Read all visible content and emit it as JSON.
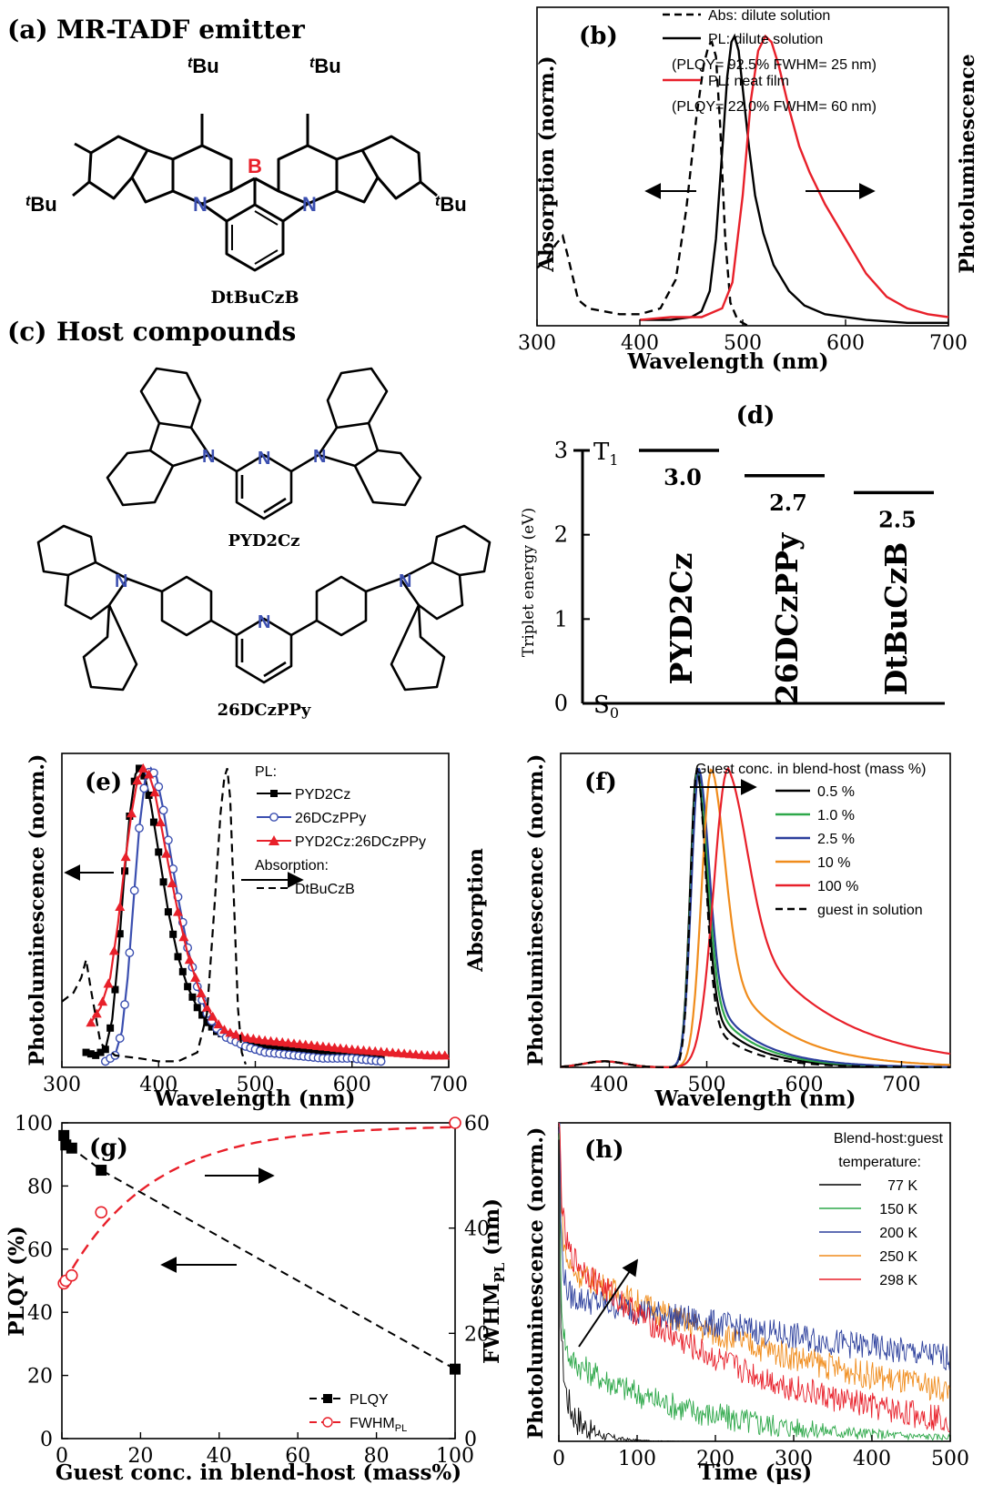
{
  "panel_a": {
    "label": "(a)",
    "title": "MR-TADF emitter",
    "substituents": {
      "tbu_prefix": "t",
      "tbu_suffix": "Bu"
    },
    "atoms": {
      "boron": "B",
      "nitrogen": "N"
    },
    "compound_name": "DtBuCzB"
  },
  "panel_c": {
    "label": "(c)",
    "title": "Host compounds",
    "atoms": {
      "nitrogen": "N"
    },
    "compound_1": "PYD2Cz",
    "compound_2": "26DCzPPy"
  },
  "colors": {
    "black": "#000000",
    "red": "#e8202a",
    "blue": "#3b4fb0",
    "green": "#2ea84a",
    "darkblue": "#2c3f9c",
    "orange": "#f08c1c"
  },
  "chart_data": [
    {
      "id": "b",
      "label": "(b)",
      "type": "line",
      "xlabel": "Wavelength (nm)",
      "ylabel": "Absorption (norm.)",
      "ylabel_right": "Photoluminescence",
      "xlim": [
        300,
        700
      ],
      "ylim": [
        0,
        1.1
      ],
      "xticks": [
        "300",
        "400",
        "500",
        "600",
        "700"
      ],
      "legend": [
        {
          "text": "Abs: dilute solution",
          "style": "dashed",
          "color": "#000000"
        },
        {
          "text": "PL: dilute solution",
          "style": "solid",
          "color": "#000000"
        },
        {
          "text": "(PLQY= 92.5% FWHM= 25 nm)",
          "style": "none"
        },
        {
          "text": "PL: neat film",
          "style": "solid",
          "color": "#e8202a"
        },
        {
          "text": "(PLQY= 22.0% FWHM= 60 nm)",
          "style": "none"
        }
      ],
      "series": [
        {
          "name": "Abs: dilute solution",
          "style": "dashed",
          "color": "#000000",
          "x": [
            300,
            310,
            318,
            325,
            330,
            340,
            350,
            380,
            400,
            420,
            435,
            445,
            455,
            462,
            467,
            470,
            474,
            478,
            483,
            488,
            495,
            505
          ],
          "y": [
            0.2,
            0.23,
            0.28,
            0.31,
            0.24,
            0.09,
            0.06,
            0.04,
            0.04,
            0.06,
            0.16,
            0.4,
            0.72,
            0.9,
            0.97,
            0.98,
            0.93,
            0.7,
            0.3,
            0.08,
            0.02,
            0.0
          ]
        },
        {
          "name": "PL: dilute solution",
          "style": "solid",
          "color": "#000000",
          "x": [
            400,
            430,
            450,
            460,
            468,
            474,
            480,
            485,
            489,
            492,
            496,
            500,
            506,
            512,
            520,
            530,
            545,
            560,
            580,
            620,
            660,
            700
          ],
          "y": [
            0.02,
            0.02,
            0.03,
            0.05,
            0.12,
            0.3,
            0.6,
            0.86,
            0.98,
            1.0,
            0.95,
            0.82,
            0.62,
            0.45,
            0.32,
            0.21,
            0.12,
            0.07,
            0.04,
            0.02,
            0.01,
            0.01
          ]
        },
        {
          "name": "PL: neat film",
          "style": "solid",
          "color": "#e8202a",
          "x": [
            400,
            430,
            460,
            480,
            490,
            500,
            508,
            515,
            522,
            528,
            535,
            545,
            555,
            565,
            580,
            600,
            620,
            640,
            660,
            680,
            700
          ],
          "y": [
            0.02,
            0.03,
            0.03,
            0.06,
            0.15,
            0.45,
            0.78,
            0.95,
            1.0,
            0.98,
            0.9,
            0.75,
            0.62,
            0.53,
            0.42,
            0.3,
            0.18,
            0.1,
            0.06,
            0.04,
            0.03
          ]
        }
      ],
      "annotations": [
        {
          "text": "←",
          "meaning": "absorption axis"
        },
        {
          "text": "→",
          "meaning": "PL axis"
        }
      ]
    },
    {
      "id": "d",
      "label": "(d)",
      "type": "bar",
      "ylabel": "Triplet energy (eV)",
      "ylim": [
        0,
        3
      ],
      "yticks": [
        "0",
        "1",
        "2",
        "3"
      ],
      "level_top": "T",
      "level_top_sub": "1",
      "level_bottom": "S",
      "level_bottom_sub": "0",
      "categories": [
        "PYD2Cz",
        "26DCzPPy",
        "DtBuCzB"
      ],
      "values": [
        3.0,
        2.7,
        2.5
      ],
      "value_labels": [
        "3.0",
        "2.7",
        "2.5"
      ]
    },
    {
      "id": "e",
      "label": "(e)",
      "type": "line",
      "xlabel": "Wavelength (nm)",
      "ylabel": "Photoluminescence (norm.)",
      "ylabel_right": "Absorption",
      "xlim": [
        300,
        700
      ],
      "ylim": [
        0,
        1.05
      ],
      "xticks": [
        "300",
        "400",
        "500",
        "600",
        "700"
      ],
      "legend_title_pl": "PL:",
      "legend_title_abs": "Absorption:",
      "series": [
        {
          "name": "PYD2Cz",
          "color": "#000000",
          "marker": "square",
          "x": [
            325,
            335,
            345,
            352,
            358,
            364,
            370,
            376,
            380,
            386,
            392,
            400,
            410,
            420,
            430,
            440,
            450,
            460,
            480,
            500,
            530,
            560,
            600,
            630
          ],
          "y": [
            0.05,
            0.04,
            0.06,
            0.16,
            0.36,
            0.62,
            0.84,
            0.98,
            1.0,
            0.97,
            0.88,
            0.72,
            0.52,
            0.37,
            0.27,
            0.2,
            0.15,
            0.12,
            0.09,
            0.07,
            0.06,
            0.05,
            0.04,
            0.03
          ]
        },
        {
          "name": "26DCzPPy",
          "color": "#3b4fb0",
          "marker": "circle",
          "x": [
            345,
            355,
            362,
            368,
            374,
            380,
            386,
            392,
            398,
            405,
            412,
            420,
            430,
            440,
            450,
            460,
            470,
            490,
            510,
            540,
            570,
            600,
            630
          ],
          "y": [
            0.02,
            0.04,
            0.12,
            0.3,
            0.55,
            0.8,
            0.96,
            1.0,
            0.97,
            0.86,
            0.72,
            0.57,
            0.4,
            0.27,
            0.18,
            0.13,
            0.1,
            0.07,
            0.05,
            0.04,
            0.03,
            0.03,
            0.02
          ]
        },
        {
          "name": "PYD2Cz:26DCzPPy",
          "color": "#e8202a",
          "marker": "triangle",
          "x": [
            330,
            340,
            350,
            358,
            365,
            372,
            378,
            384,
            390,
            396,
            402,
            410,
            420,
            430,
            440,
            450,
            460,
            470,
            490,
            510,
            540,
            570,
            600,
            640,
            680,
            700
          ],
          "y": [
            0.15,
            0.2,
            0.3,
            0.48,
            0.68,
            0.85,
            0.96,
            1.0,
            0.98,
            0.92,
            0.82,
            0.68,
            0.52,
            0.38,
            0.28,
            0.2,
            0.15,
            0.12,
            0.1,
            0.09,
            0.08,
            0.07,
            0.06,
            0.05,
            0.04,
            0.04
          ]
        },
        {
          "name": "DtBuCzB",
          "color": "#000000",
          "style": "dashed",
          "x": [
            300,
            312,
            320,
            325,
            330,
            340,
            355,
            380,
            400,
            420,
            440,
            450,
            458,
            464,
            468,
            471,
            474,
            478,
            482,
            486,
            490
          ],
          "y": [
            0.22,
            0.25,
            0.3,
            0.36,
            0.26,
            0.08,
            0.04,
            0.03,
            0.02,
            0.02,
            0.05,
            0.18,
            0.55,
            0.85,
            0.97,
            1.0,
            0.9,
            0.55,
            0.2,
            0.05,
            0.01
          ]
        }
      ]
    },
    {
      "id": "f",
      "label": "(f)",
      "type": "line",
      "xlabel": "Wavelength (nm)",
      "ylabel": "Photoluminescence (norm.)",
      "xlim": [
        350,
        750
      ],
      "ylim": [
        0,
        1.05
      ],
      "xticks": [
        "400",
        "500",
        "600",
        "700"
      ],
      "legend_title": "Guest conc. in blend-host (mass %)",
      "series": [
        {
          "name": "0.5 %",
          "color": "#000000",
          "peak": 490,
          "width": 18,
          "tail": 0.25
        },
        {
          "name": "1.0 %",
          "color": "#2ea84a",
          "peak": 491,
          "width": 19,
          "tail": 0.28
        },
        {
          "name": "2.5 %",
          "color": "#2c3f9c",
          "peak": 492,
          "width": 20,
          "tail": 0.3
        },
        {
          "name": "10 %",
          "color": "#f08c1c",
          "peak": 505,
          "width": 26,
          "tail": 0.4
        },
        {
          "name": "100 %",
          "color": "#e8202a",
          "peak": 522,
          "width": 38,
          "tail": 0.55
        },
        {
          "name": "guest in solution",
          "color": "#000000",
          "style": "dashed",
          "peak": 490,
          "width": 17,
          "tail": 0.2
        }
      ]
    },
    {
      "id": "g",
      "label": "(g)",
      "type": "scatter",
      "xlabel": "Guest conc. in blend-host (mass%)",
      "ylabel": "PLQY (%)",
      "ylabel_right_main": "FWHM",
      "ylabel_right_sub": "PL",
      "ylabel_right_unit": " (nm)",
      "xlim": [
        0,
        100
      ],
      "ylim": [
        0,
        100
      ],
      "ylim_right": [
        0,
        60
      ],
      "xticks": [
        "0",
        "20",
        "40",
        "60",
        "80",
        "100"
      ],
      "yticks": [
        "0",
        "20",
        "40",
        "60",
        "80",
        "100"
      ],
      "yticks_right": [
        "0",
        "20",
        "40",
        "60"
      ],
      "legend_plqy": "PLQY",
      "legend_fwhm_main": "FWHM",
      "legend_fwhm_sub": "PL",
      "series": [
        {
          "name": "PLQY",
          "color": "#000000",
          "marker": "square",
          "x": [
            0.5,
            1.0,
            2.5,
            10,
            100
          ],
          "y": [
            96,
            93,
            92,
            85,
            22
          ]
        },
        {
          "name": "FWHM_PL",
          "color": "#e8202a",
          "marker": "circle",
          "x": [
            0.5,
            1.0,
            2.5,
            10,
            100
          ],
          "y": [
            29.5,
            30,
            31,
            43,
            60
          ]
        }
      ]
    },
    {
      "id": "h",
      "label": "(h)",
      "type": "line",
      "xlabel": "Time (μs)",
      "ylabel": "Photoluminescence (norm.)",
      "xlim": [
        0,
        500
      ],
      "xticks": [
        "0",
        "100",
        "200",
        "300",
        "400",
        "500"
      ],
      "legend_title_1": "Blend-host:guest",
      "legend_title_2": "temperature:",
      "series": [
        {
          "name": "77 K",
          "color": "#000000",
          "delayed": 0.18,
          "tau": 25
        },
        {
          "name": "150 K",
          "color": "#2ea84a",
          "delayed": 0.28,
          "tau": 160
        },
        {
          "name": "200 K",
          "color": "#2c3f9c",
          "delayed": 0.46,
          "tau": 900
        },
        {
          "name": "250 K",
          "color": "#f08c1c",
          "delayed": 0.56,
          "tau": 400
        },
        {
          "name": "298 K",
          "color": "#e8202a",
          "delayed": 0.62,
          "tau": 230
        }
      ]
    }
  ]
}
